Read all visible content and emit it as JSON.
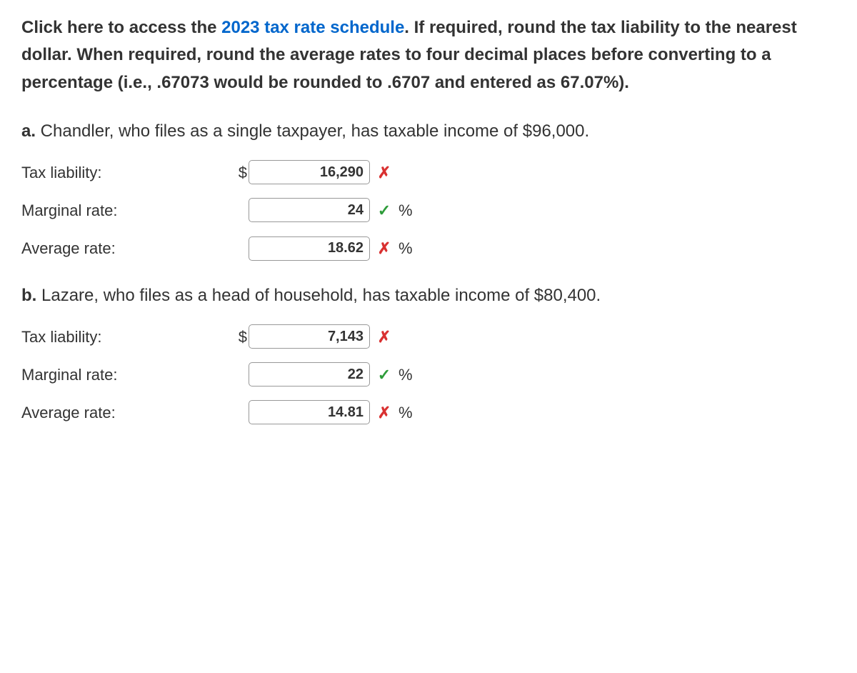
{
  "instructions": {
    "pre_link": "Click here to access the ",
    "link_text": "2023 tax rate schedule",
    "post_link": ". If required, round the tax liability to the nearest dollar. When required, round the average rates to four decimal places before converting to a percentage (i.e., .67073 would be rounded to .6707 and entered as 67.07%)."
  },
  "question_a": {
    "letter": "a.",
    "text": " Chandler, who files as a single taxpayer, has taxable income of $96,000.",
    "rows": [
      {
        "label": "Tax liability:",
        "prefix": "$",
        "value": "16,290",
        "mark": "incorrect",
        "suffix": ""
      },
      {
        "label": "Marginal rate:",
        "prefix": "",
        "value": "24",
        "mark": "correct",
        "suffix": "%"
      },
      {
        "label": "Average rate:",
        "prefix": "",
        "value": "18.62",
        "mark": "incorrect",
        "suffix": "%"
      }
    ]
  },
  "question_b": {
    "letter": "b.",
    "text": " Lazare, who files as a head of household, has taxable income of $80,400.",
    "rows": [
      {
        "label": "Tax liability:",
        "prefix": "$",
        "value": "7,143",
        "mark": "incorrect",
        "suffix": ""
      },
      {
        "label": "Marginal rate:",
        "prefix": "",
        "value": "22",
        "mark": "correct",
        "suffix": "%"
      },
      {
        "label": "Average rate:",
        "prefix": "",
        "value": "14.81",
        "mark": "incorrect",
        "suffix": "%"
      }
    ]
  },
  "marks": {
    "correct": "✓",
    "incorrect": "✗"
  },
  "colors": {
    "link": "#0066cc",
    "correct": "#2e9c3a",
    "incorrect": "#d93131",
    "text": "#333333"
  }
}
